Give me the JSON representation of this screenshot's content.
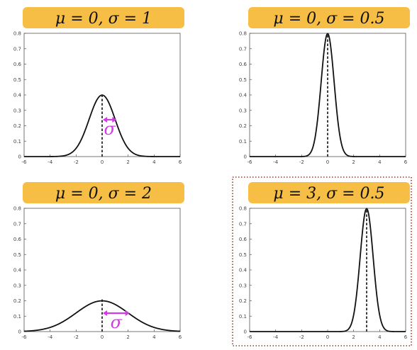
{
  "colors": {
    "title_box": "#F7BE45",
    "curve": "#111111",
    "mean_line": "#111111",
    "sigma": "#D23CE6",
    "highlight_border": "#9C3A2A",
    "axis": "#555555"
  },
  "chart_data": [
    {
      "type": "line",
      "title": "μ = 0, σ = 1",
      "mu": 0,
      "sigma": 1,
      "xlim": [
        -6,
        6
      ],
      "ylim": [
        0,
        0.8
      ],
      "xticks": [
        -6,
        -4,
        -2,
        0,
        2,
        4,
        6
      ],
      "yticks": [
        0,
        0.1,
        0.2,
        0.3,
        0.4,
        0.5,
        0.6,
        0.7,
        0.8
      ],
      "series": [
        {
          "function": "normal_pdf",
          "peak": 0.399
        }
      ],
      "mean_line": true,
      "sigma_annotation": "σ",
      "highlighted": false
    },
    {
      "type": "line",
      "title": "μ = 0, σ = 0.5",
      "mu": 0,
      "sigma": 0.5,
      "xlim": [
        -6,
        6
      ],
      "ylim": [
        0,
        0.8
      ],
      "xticks": [
        -6,
        -4,
        -2,
        0,
        2,
        4,
        6
      ],
      "yticks": [
        0,
        0.1,
        0.2,
        0.3,
        0.4,
        0.5,
        0.6,
        0.7,
        0.8
      ],
      "series": [
        {
          "function": "normal_pdf",
          "peak": 0.798
        }
      ],
      "mean_line": true,
      "sigma_annotation": "",
      "highlighted": false
    },
    {
      "type": "line",
      "title": "μ = 0, σ = 2",
      "mu": 0,
      "sigma": 2,
      "xlim": [
        -6,
        6
      ],
      "ylim": [
        0,
        0.8
      ],
      "xticks": [
        -6,
        -4,
        -2,
        0,
        2,
        4,
        6
      ],
      "yticks": [
        0,
        0.1,
        0.2,
        0.3,
        0.4,
        0.5,
        0.6,
        0.7,
        0.8
      ],
      "series": [
        {
          "function": "normal_pdf",
          "peak": 0.199
        }
      ],
      "mean_line": true,
      "sigma_annotation": "σ",
      "highlighted": false
    },
    {
      "type": "line",
      "title": "μ = 3, σ = 0.5",
      "mu": 3,
      "sigma": 0.5,
      "xlim": [
        -6,
        6
      ],
      "ylim": [
        0,
        0.8
      ],
      "xticks": [
        -6,
        -4,
        -2,
        0,
        2,
        4,
        6
      ],
      "yticks": [
        0,
        0.1,
        0.2,
        0.3,
        0.4,
        0.5,
        0.6,
        0.7,
        0.8
      ],
      "series": [
        {
          "function": "normal_pdf",
          "peak": 0.798
        }
      ],
      "mean_line": true,
      "sigma_annotation": "",
      "highlighted": true
    }
  ]
}
